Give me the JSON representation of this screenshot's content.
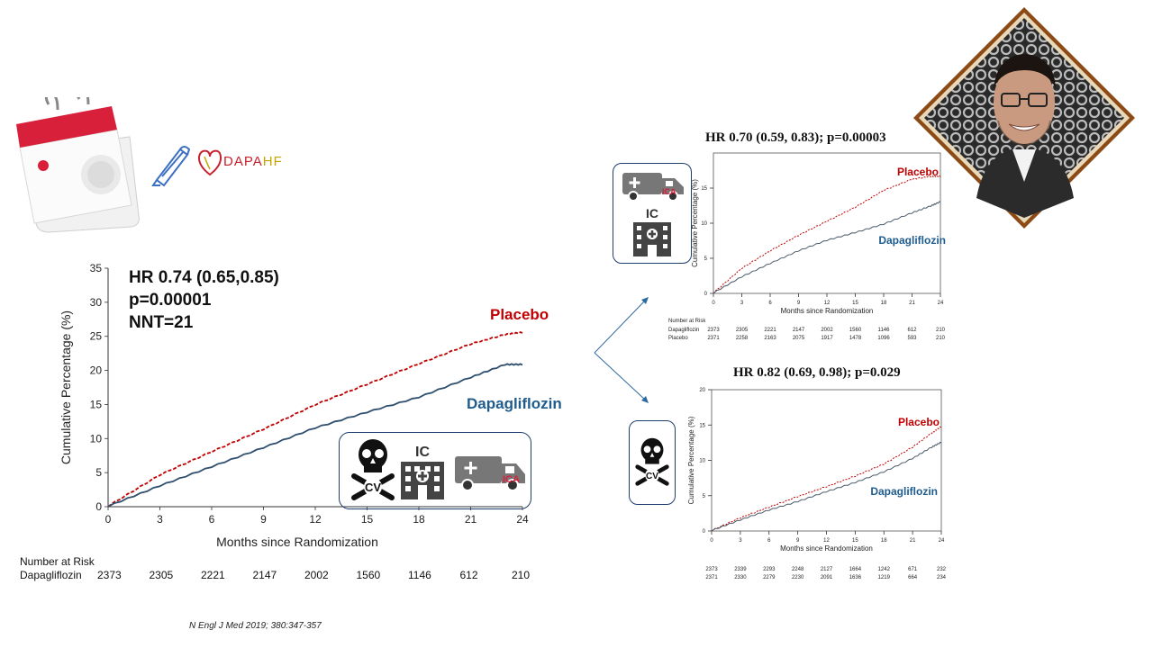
{
  "header": {
    "logo_text_left": "DAPA",
    "logo_text_right": "HF"
  },
  "main_chart": {
    "stats_line1": "HR 0.74 (0.65,0.85)",
    "stats_line2": "p=0.00001",
    "stats_line3": "NNT=21",
    "risk_title": "Number at Risk",
    "risk_group": "Dapagliflozin",
    "endpoint_labels": {
      "ic": "IC",
      "cv": "CV",
      "ica": "ICA"
    }
  },
  "citation": "N Engl J Med 2019; 380:347-357",
  "top_right": {
    "stats": "HR 0.70 (0.59, 0.83); p=0.00003",
    "endpoint_labels": {
      "ica": "ICA",
      "ic": "IC"
    },
    "risk_title": "Number at Risk",
    "risk_groups": [
      "Dapagliflozin",
      "Placebo"
    ]
  },
  "bottom_right": {
    "stats": "HR 0.82 (0.69, 0.98); p=0.029",
    "endpoint_labels": {
      "cv": "CV"
    }
  },
  "colors": {
    "placebo": "#c00000",
    "dapagliflozin": "#1e5c8e",
    "border": "#1f3f6e"
  },
  "icons": [
    "calendar-icon",
    "pencil-icon",
    "heart-logo-icon",
    "skull-crossbones-icon",
    "hospital-icon",
    "ambulance-icon",
    "arrow-icon",
    "presenter-photo"
  ],
  "chart_data": [
    {
      "type": "line",
      "xlabel": "Months since Randomization",
      "ylabel": "Cumulative Percentage (%)",
      "xlim": [
        0,
        24
      ],
      "ylim": [
        0,
        35
      ],
      "xticks": [
        0,
        3,
        6,
        9,
        12,
        15,
        18,
        21,
        24
      ],
      "yticks": [
        0,
        5,
        10,
        15,
        20,
        25,
        30,
        35
      ],
      "series": [
        {
          "name": "Placebo",
          "x": [
            0,
            3,
            6,
            9,
            12,
            15,
            18,
            21,
            23,
            24
          ],
          "y": [
            0,
            4.6,
            8.0,
            11.3,
            14.9,
            17.9,
            20.9,
            23.8,
            25.2,
            25.5
          ]
        },
        {
          "name": "Dapagliflozin",
          "x": [
            0,
            3,
            6,
            9,
            12,
            15,
            18,
            21,
            23,
            24
          ],
          "y": [
            0,
            3.0,
            5.8,
            8.6,
            11.5,
            13.8,
            16.0,
            18.9,
            20.8,
            20.8
          ]
        }
      ],
      "risk_table": {
        "Dapagliflozin": [
          2373,
          2305,
          2221,
          2147,
          2002,
          1560,
          1146,
          612,
          210
        ]
      },
      "grid": false
    },
    {
      "type": "line",
      "xlabel": "Months since Randomization",
      "ylabel": "Cumulative Percentage (%)",
      "xlim": [
        0,
        24
      ],
      "ylim": [
        0,
        20
      ],
      "xticks": [
        0,
        3,
        6,
        9,
        12,
        15,
        18,
        21,
        24
      ],
      "yticks": [
        0,
        5,
        10,
        15
      ],
      "series": [
        {
          "name": "Placebo",
          "x": [
            0,
            3,
            6,
            9,
            12,
            15,
            18,
            21,
            23,
            24
          ],
          "y": [
            0,
            3.5,
            6.0,
            8.2,
            10.2,
            12.2,
            14.6,
            16.2,
            16.6,
            16.6
          ]
        },
        {
          "name": "Dapagliflozin",
          "x": [
            0,
            3,
            6,
            9,
            12,
            15,
            18,
            21,
            23,
            24
          ],
          "y": [
            0,
            2.3,
            4.2,
            6.0,
            7.5,
            8.6,
            9.8,
            11.4,
            12.4,
            13.0
          ]
        }
      ],
      "risk_table": {
        "Dapagliflozin": [
          2373,
          2305,
          2221,
          2147,
          2002,
          1560,
          1146,
          612,
          210
        ],
        "Placebo": [
          2371,
          2258,
          2163,
          2075,
          1917,
          1478,
          1096,
          593,
          210
        ]
      },
      "grid": false
    },
    {
      "type": "line",
      "xlabel": "Months since Randomization",
      "ylabel": "Cumulative Percentage (%)",
      "xlim": [
        0,
        24
      ],
      "ylim": [
        0,
        20
      ],
      "xticks": [
        0,
        3,
        6,
        9,
        12,
        15,
        18,
        21,
        24
      ],
      "yticks": [
        0,
        5,
        10,
        15,
        20
      ],
      "series": [
        {
          "name": "Placebo",
          "x": [
            0,
            3,
            6,
            9,
            12,
            15,
            18,
            21,
            23,
            24
          ],
          "y": [
            0,
            1.8,
            3.3,
            4.8,
            6.2,
            7.7,
            9.4,
            11.8,
            13.8,
            14.7
          ]
        },
        {
          "name": "Dapagliflozin",
          "x": [
            0,
            3,
            6,
            9,
            12,
            15,
            18,
            21,
            23,
            24
          ],
          "y": [
            0,
            1.5,
            2.9,
            4.1,
            5.5,
            6.8,
            8.3,
            10.2,
            11.8,
            12.5
          ]
        }
      ],
      "risk_table": {
        "Dapagliflozin": [
          2373,
          2339,
          2293,
          2248,
          2127,
          1664,
          1242,
          671,
          232
        ],
        "Placebo": [
          2371,
          2330,
          2279,
          2230,
          2091,
          1636,
          1219,
          664,
          234
        ]
      },
      "grid": false
    }
  ]
}
